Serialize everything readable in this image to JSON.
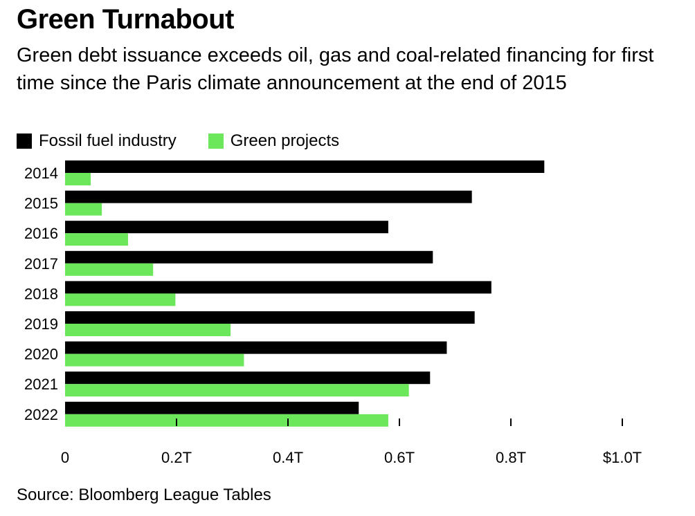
{
  "title": "Green Turnabout",
  "subtitle": "Green debt issuance exceeds oil, gas and coal-related financing for first time since the Paris climate announcement at the end of 2015",
  "source": "Source: Bloomberg League Tables",
  "colors": {
    "fossil": "#000000",
    "green": "#6ce65a"
  },
  "chart_data": {
    "type": "bar",
    "orientation": "horizontal",
    "title": "Green Turnabout",
    "categories": [
      "2014",
      "2015",
      "2016",
      "2017",
      "2018",
      "2019",
      "2020",
      "2021",
      "2022"
    ],
    "series": [
      {
        "name": "Fossil fuel industry",
        "color": "#000000",
        "values": [
          0.86,
          0.73,
          0.58,
          0.66,
          0.765,
          0.735,
          0.685,
          0.655,
          0.527
        ]
      },
      {
        "name": "Green projects",
        "color": "#6ce65a",
        "values": [
          0.046,
          0.066,
          0.113,
          0.158,
          0.198,
          0.297,
          0.321,
          0.617,
          0.58
        ]
      }
    ],
    "xlim": [
      0,
      1.0
    ],
    "x_ticks": [
      0,
      0.2,
      0.4,
      0.6,
      0.8,
      1.0
    ],
    "x_tick_labels": [
      "0",
      "0.2T",
      "0.4T",
      "0.6T",
      "0.8T",
      "$1.0T"
    ],
    "xlabel": "",
    "ylabel": "",
    "legend_position": "top-left",
    "grid": false
  }
}
